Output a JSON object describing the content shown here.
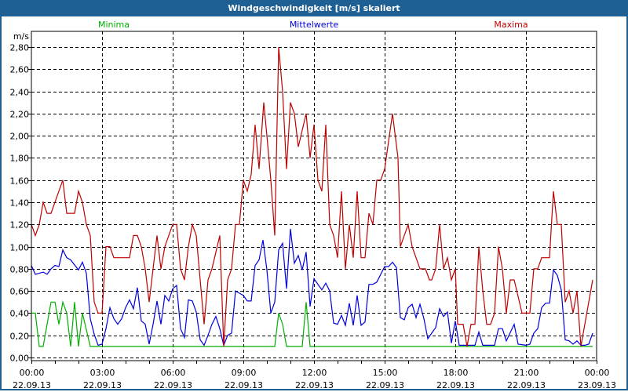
{
  "title": "Windgeschwindigkeit [m/s] skaliert",
  "colors": {
    "title_bg": "#1e5f94",
    "minima": "#00b000",
    "mean": "#0000e0",
    "maxima": "#c00000"
  },
  "chart_data": {
    "type": "line",
    "title": "Windgeschwindigkeit [m/s] skaliert",
    "ylabel": "m/s",
    "xlabel": "",
    "ylim": [
      0,
      2.8
    ],
    "yticks": [
      "0,00",
      "0,20",
      "0,40",
      "0,60",
      "0,80",
      "1,00",
      "1,20",
      "1,40",
      "1,60",
      "1,80",
      "2,00",
      "2,20",
      "2,40",
      "2,60",
      "2,80"
    ],
    "xlim_minutes": [
      0,
      1440
    ],
    "xticks": [
      {
        "time": "00:00",
        "date": "22.09.13"
      },
      {
        "time": "03:00",
        "date": "22.09.13"
      },
      {
        "time": "06:00",
        "date": "22.09.13"
      },
      {
        "time": "09:00",
        "date": "22.09.13"
      },
      {
        "time": "12:00",
        "date": "22.09.13"
      },
      {
        "time": "15:00",
        "date": "22.09.13"
      },
      {
        "time": "18:00",
        "date": "22.09.13"
      },
      {
        "time": "21:00",
        "date": "22.09.13"
      },
      {
        "time": "00:00",
        "date": "23.09.13"
      }
    ],
    "grid": true,
    "x_unit": "minutes since 22.09.13 00:00",
    "series": [
      {
        "name": "Minima",
        "color": "#00b000",
        "legend": "top-left",
        "points": [
          [
            0,
            0.4
          ],
          [
            10,
            0.4
          ],
          [
            20,
            0.1
          ],
          [
            30,
            0.1
          ],
          [
            50,
            0.5
          ],
          [
            60,
            0.5
          ],
          [
            70,
            0.3
          ],
          [
            80,
            0.5
          ],
          [
            90,
            0.4
          ],
          [
            100,
            0.1
          ],
          [
            110,
            0.5
          ],
          [
            120,
            0.1
          ],
          [
            130,
            0.4
          ],
          [
            150,
            0.1
          ],
          [
            620,
            0.1
          ],
          [
            630,
            0.4
          ],
          [
            640,
            0.3
          ],
          [
            650,
            0.1
          ],
          [
            690,
            0.1
          ],
          [
            700,
            0.5
          ],
          [
            710,
            0.1
          ],
          [
            1430,
            0.1
          ]
        ]
      },
      {
        "name": "Mittelwerte",
        "color": "#0000e0",
        "legend": "top-center",
        "points": [
          [
            0,
            0.83
          ],
          [
            10,
            0.75
          ],
          [
            30,
            0.77
          ],
          [
            40,
            0.75
          ],
          [
            50,
            0.8
          ],
          [
            60,
            0.83
          ],
          [
            70,
            0.82
          ],
          [
            80,
            0.97
          ],
          [
            90,
            0.9
          ],
          [
            100,
            0.88
          ],
          [
            120,
            0.79
          ],
          [
            130,
            0.86
          ],
          [
            140,
            0.76
          ],
          [
            150,
            0.35
          ],
          [
            160,
            0.21
          ],
          [
            170,
            0.11
          ],
          [
            180,
            0.12
          ],
          [
            190,
            0.26
          ],
          [
            200,
            0.45
          ],
          [
            210,
            0.35
          ],
          [
            220,
            0.3
          ],
          [
            230,
            0.35
          ],
          [
            240,
            0.45
          ],
          [
            250,
            0.52
          ],
          [
            260,
            0.44
          ],
          [
            270,
            0.63
          ],
          [
            280,
            0.33
          ],
          [
            290,
            0.3
          ],
          [
            300,
            0.12
          ],
          [
            310,
            0.3
          ],
          [
            320,
            0.51
          ],
          [
            330,
            0.3
          ],
          [
            340,
            0.56
          ],
          [
            350,
            0.51
          ],
          [
            360,
            0.62
          ],
          [
            370,
            0.65
          ],
          [
            380,
            0.26
          ],
          [
            390,
            0.18
          ],
          [
            400,
            0.52
          ],
          [
            410,
            0.51
          ],
          [
            420,
            0.41
          ],
          [
            430,
            0.16
          ],
          [
            440,
            0.11
          ],
          [
            450,
            0.2
          ],
          [
            460,
            0.3
          ],
          [
            470,
            0.37
          ],
          [
            480,
            0.26
          ],
          [
            490,
            0.11
          ],
          [
            500,
            0.2
          ],
          [
            510,
            0.22
          ],
          [
            520,
            0.6
          ],
          [
            530,
            0.58
          ],
          [
            540,
            0.56
          ],
          [
            550,
            0.51
          ],
          [
            560,
            0.51
          ],
          [
            570,
            0.83
          ],
          [
            580,
            0.88
          ],
          [
            590,
            1.06
          ],
          [
            600,
            0.79
          ],
          [
            610,
            0.4
          ],
          [
            620,
            0.5
          ],
          [
            630,
            0.97
          ],
          [
            640,
            1.03
          ],
          [
            650,
            0.62
          ],
          [
            660,
            1.16
          ],
          [
            670,
            0.85
          ],
          [
            680,
            0.92
          ],
          [
            690,
            0.79
          ],
          [
            700,
            0.95
          ],
          [
            710,
            0.46
          ],
          [
            720,
            0.71
          ],
          [
            740,
            0.61
          ],
          [
            750,
            0.67
          ],
          [
            760,
            0.6
          ],
          [
            770,
            0.31
          ],
          [
            780,
            0.3
          ],
          [
            790,
            0.38
          ],
          [
            800,
            0.29
          ],
          [
            810,
            0.49
          ],
          [
            820,
            0.29
          ],
          [
            830,
            0.56
          ],
          [
            840,
            0.29
          ],
          [
            850,
            0.32
          ],
          [
            860,
            0.66
          ],
          [
            870,
            0.66
          ],
          [
            880,
            0.68
          ],
          [
            900,
            0.82
          ],
          [
            910,
            0.82
          ],
          [
            920,
            0.86
          ],
          [
            930,
            0.81
          ],
          [
            940,
            0.36
          ],
          [
            950,
            0.34
          ],
          [
            960,
            0.45
          ],
          [
            970,
            0.48
          ],
          [
            980,
            0.36
          ],
          [
            990,
            0.48
          ],
          [
            1000,
            0.35
          ],
          [
            1010,
            0.17
          ],
          [
            1020,
            0.22
          ],
          [
            1030,
            0.27
          ],
          [
            1040,
            0.44
          ],
          [
            1050,
            0.37
          ],
          [
            1060,
            0.41
          ],
          [
            1070,
            0.13
          ],
          [
            1080,
            0.33
          ],
          [
            1090,
            0.11
          ],
          [
            1130,
            0.11
          ],
          [
            1140,
            0.23
          ],
          [
            1150,
            0.11
          ],
          [
            1180,
            0.11
          ],
          [
            1190,
            0.26
          ],
          [
            1200,
            0.26
          ],
          [
            1210,
            0.15
          ],
          [
            1230,
            0.3
          ],
          [
            1240,
            0.12
          ],
          [
            1260,
            0.11
          ],
          [
            1270,
            0.12
          ],
          [
            1280,
            0.22
          ],
          [
            1290,
            0.26
          ],
          [
            1300,
            0.45
          ],
          [
            1310,
            0.49
          ],
          [
            1320,
            0.49
          ],
          [
            1330,
            0.79
          ],
          [
            1340,
            0.74
          ],
          [
            1350,
            0.61
          ],
          [
            1360,
            0.16
          ],
          [
            1370,
            0.15
          ],
          [
            1380,
            0.12
          ],
          [
            1390,
            0.15
          ],
          [
            1400,
            0.11
          ],
          [
            1410,
            0.11
          ],
          [
            1420,
            0.12
          ],
          [
            1430,
            0.22
          ]
        ]
      },
      {
        "name": "Maxima",
        "color": "#c00000",
        "legend": "top-right",
        "points": [
          [
            0,
            1.2
          ],
          [
            10,
            1.1
          ],
          [
            20,
            1.2
          ],
          [
            30,
            1.4
          ],
          [
            40,
            1.3
          ],
          [
            50,
            1.3
          ],
          [
            80,
            1.6
          ],
          [
            90,
            1.3
          ],
          [
            110,
            1.3
          ],
          [
            120,
            1.5
          ],
          [
            130,
            1.4
          ],
          [
            140,
            1.2
          ],
          [
            150,
            1.1
          ],
          [
            160,
            0.5
          ],
          [
            170,
            0.4
          ],
          [
            180,
            0.4
          ],
          [
            190,
            1.0
          ],
          [
            200,
            1.0
          ],
          [
            210,
            0.9
          ],
          [
            250,
            0.9
          ],
          [
            260,
            1.1
          ],
          [
            270,
            1.1
          ],
          [
            280,
            1.0
          ],
          [
            290,
            0.8
          ],
          [
            300,
            0.5
          ],
          [
            320,
            1.1
          ],
          [
            330,
            0.8
          ],
          [
            340,
            1.0
          ],
          [
            360,
            1.2
          ],
          [
            370,
            1.2
          ],
          [
            380,
            0.8
          ],
          [
            390,
            0.7
          ],
          [
            400,
            1.0
          ],
          [
            410,
            1.2
          ],
          [
            420,
            1.1
          ],
          [
            440,
            0.3
          ],
          [
            450,
            0.7
          ],
          [
            460,
            0.8
          ],
          [
            480,
            1.1
          ],
          [
            490,
            0.1
          ],
          [
            500,
            0.7
          ],
          [
            510,
            0.8
          ],
          [
            520,
            1.2
          ],
          [
            530,
            1.2
          ],
          [
            540,
            1.6
          ],
          [
            550,
            1.5
          ],
          [
            560,
            1.65
          ],
          [
            570,
            2.1
          ],
          [
            580,
            1.7
          ],
          [
            592,
            2.3
          ],
          [
            600,
            2.0
          ],
          [
            610,
            1.6
          ],
          [
            620,
            1.1
          ],
          [
            630,
            2.8
          ],
          [
            640,
            2.4
          ],
          [
            650,
            1.7
          ],
          [
            660,
            2.3
          ],
          [
            670,
            2.2
          ],
          [
            680,
            1.9
          ],
          [
            700,
            2.2
          ],
          [
            710,
            1.8
          ],
          [
            720,
            2.1
          ],
          [
            730,
            1.6
          ],
          [
            740,
            1.5
          ],
          [
            750,
            2.1
          ],
          [
            760,
            1.2
          ],
          [
            770,
            1.1
          ],
          [
            780,
            0.9
          ],
          [
            790,
            1.5
          ],
          [
            800,
            0.8
          ],
          [
            810,
            1.2
          ],
          [
            820,
            0.9
          ],
          [
            830,
            1.5
          ],
          [
            840,
            0.9
          ],
          [
            850,
            0.9
          ],
          [
            860,
            1.3
          ],
          [
            870,
            1.2
          ],
          [
            880,
            1.6
          ],
          [
            890,
            1.6
          ],
          [
            900,
            1.7
          ],
          [
            920,
            2.2
          ],
          [
            934,
            1.8
          ],
          [
            940,
            1.0
          ],
          [
            960,
            1.2
          ],
          [
            970,
            1.0
          ],
          [
            990,
            0.8
          ],
          [
            1004,
            0.8
          ],
          [
            1014,
            0.7
          ],
          [
            1020,
            0.7
          ],
          [
            1030,
            0.8
          ],
          [
            1040,
            1.2
          ],
          [
            1050,
            0.8
          ],
          [
            1060,
            0.9
          ],
          [
            1070,
            0.7
          ],
          [
            1080,
            0.8
          ],
          [
            1086,
            0.3
          ],
          [
            1100,
            0.3
          ],
          [
            1110,
            0.1
          ],
          [
            1120,
            0.3
          ],
          [
            1130,
            0.3
          ],
          [
            1140,
            1.0
          ],
          [
            1150,
            0.6
          ],
          [
            1160,
            0.3
          ],
          [
            1170,
            0.3
          ],
          [
            1180,
            0.4
          ],
          [
            1190,
            1.0
          ],
          [
            1200,
            0.8
          ],
          [
            1210,
            0.4
          ],
          [
            1220,
            0.7
          ],
          [
            1230,
            0.7
          ],
          [
            1250,
            0.4
          ],
          [
            1270,
            0.4
          ],
          [
            1280,
            0.8
          ],
          [
            1290,
            0.8
          ],
          [
            1300,
            0.9
          ],
          [
            1320,
            0.9
          ],
          [
            1330,
            1.5
          ],
          [
            1340,
            1.2
          ],
          [
            1350,
            1.2
          ],
          [
            1360,
            0.5
          ],
          [
            1370,
            0.6
          ],
          [
            1380,
            0.4
          ],
          [
            1390,
            0.6
          ],
          [
            1400,
            0.1
          ],
          [
            1430,
            0.7
          ]
        ]
      }
    ]
  }
}
